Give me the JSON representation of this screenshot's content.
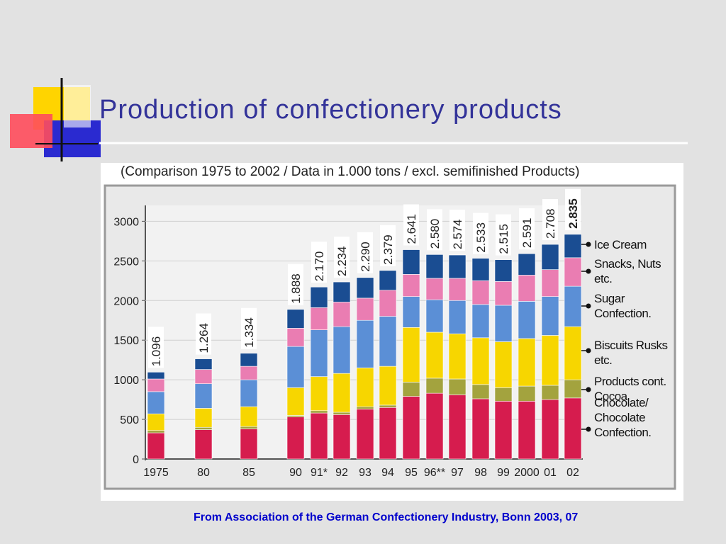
{
  "title": "Production of confectionery products",
  "source": "From Association of the German Confectionery Industry, Bonn 2003, 07",
  "chart_data": {
    "type": "stacked-bar",
    "subtitle": "(Comparison 1975 to 2002 / Data in 1.000 tons / excl. semifinished Products)",
    "categories": [
      "1975",
      "80",
      "85",
      "90",
      "91*",
      "92",
      "93",
      "94",
      "95",
      "96**",
      "97",
      "98",
      "99",
      "2000",
      "01",
      "02"
    ],
    "series": [
      {
        "name": "Chocolate/ Chocolate Confection.",
        "color": "#d61c4e",
        "values": [
          330,
          370,
          380,
          530,
          580,
          560,
          630,
          650,
          790,
          830,
          810,
          760,
          730,
          730,
          750,
          770
        ]
      },
      {
        "name": "Products cont. Cocoa",
        "color": "#a3a33e",
        "values": [
          30,
          30,
          30,
          20,
          30,
          30,
          30,
          30,
          180,
          190,
          200,
          180,
          170,
          190,
          180,
          230
        ]
      },
      {
        "name": "Biscuits Rusks etc.",
        "color": "#f7d600",
        "values": [
          210,
          240,
          250,
          350,
          430,
          490,
          490,
          490,
          690,
          580,
          570,
          590,
          580,
          600,
          630,
          670
        ]
      },
      {
        "name": "Sugar Confection.",
        "color": "#5b8fd6",
        "values": [
          280,
          310,
          340,
          520,
          590,
          590,
          600,
          630,
          390,
          410,
          420,
          420,
          460,
          470,
          490,
          510
        ]
      },
      {
        "name": "Snacks, Nuts etc.",
        "color": "#ea7db2",
        "values": [
          160,
          180,
          170,
          230,
          280,
          310,
          280,
          330,
          280,
          270,
          280,
          300,
          300,
          330,
          340,
          360
        ]
      },
      {
        "name": "Ice Cream",
        "color": "#1a4d92",
        "values": [
          86,
          134,
          164,
          238,
          260,
          254,
          260,
          249,
          311,
          300,
          294,
          283,
          275,
          271,
          318,
          295
        ]
      }
    ],
    "totals": {
      "values": [
        1096,
        1264,
        1334,
        1888,
        2170,
        2234,
        2290,
        2379,
        2641,
        2580,
        2574,
        2533,
        2515,
        2591,
        2708,
        2835
      ],
      "value_labels": [
        "1.096",
        "1.264",
        "1.334",
        "1.888",
        "2.170",
        "2.234",
        "2.290",
        "2.379",
        "2.641",
        "2.580",
        "2.574",
        "2.533",
        "2.515",
        "2.591",
        "2.708",
        "2.835"
      ]
    },
    "ylim": [
      0,
      3200
    ],
    "yticks": [
      0,
      500,
      1000,
      1500,
      2000,
      2500,
      3000
    ],
    "grid": true
  }
}
